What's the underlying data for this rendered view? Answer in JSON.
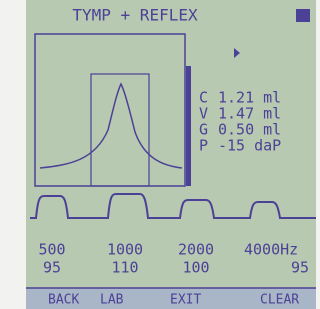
{
  "header": {
    "title": "TYMP + REFLEX"
  },
  "readouts": [
    {
      "label": "C",
      "value": "1.21 ml"
    },
    {
      "label": "V",
      "value": "1.47 ml"
    },
    {
      "label": "G",
      "value": "0.50 ml"
    },
    {
      "label": "P",
      "value": "-15 daP"
    }
  ],
  "reflex": {
    "frequencies": [
      "500",
      "1000",
      "2000",
      "4000Hz"
    ],
    "levels": [
      "95",
      "110",
      "100",
      "95"
    ]
  },
  "footer": {
    "buttons": [
      "BACK",
      "LAB",
      "EXIT",
      "CLEAR"
    ]
  }
}
